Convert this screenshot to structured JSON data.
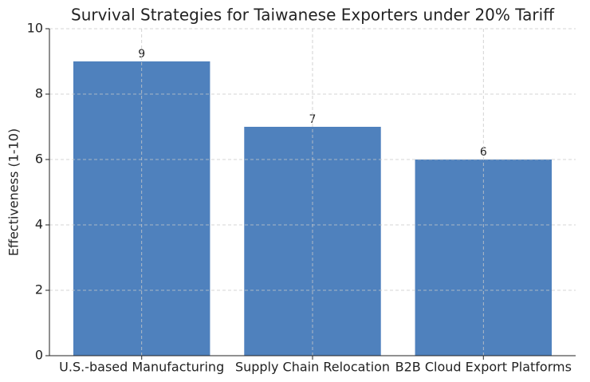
{
  "chart_data": {
    "type": "bar",
    "title": "Survival Strategies for Taiwanese Exporters under 20% Tariff",
    "y_label": "Effectiveness (1-10)",
    "categories": [
      "U.S.-based Manufacturing",
      "Supply Chain Relocation",
      "B2B Cloud Export Platforms"
    ],
    "values": [
      9,
      7,
      6
    ],
    "color": "#4f81bd",
    "ylim": [
      0,
      10
    ],
    "yticks": [
      0,
      2,
      4,
      6,
      8,
      10
    ],
    "grid": true
  }
}
